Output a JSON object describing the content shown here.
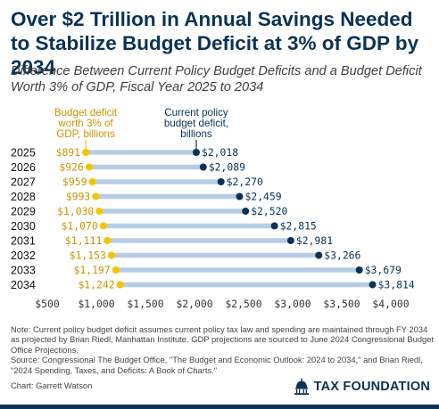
{
  "header": {
    "title": "Over $2 Trillion in Annual Savings Needed to Stabilize Budget Deficit at 3% of GDP by 2034",
    "subtitle": "Difference Between Current Policy Budget Deficits and a Budget Deficit Worth 3% of GDP, Fiscal Year 2025 to 2034"
  },
  "chart_data": {
    "type": "dumbbell",
    "categories": [
      "2025",
      "2026",
      "2027",
      "2028",
      "2029",
      "2030",
      "2031",
      "2032",
      "2033",
      "2034"
    ],
    "series": [
      {
        "name": "Budget deficit worth 3% of GDP, billions",
        "color": "#f5c400",
        "text_color": "#c99400",
        "values": [
          891,
          926,
          959,
          993,
          1030,
          1070,
          1111,
          1153,
          1197,
          1242
        ],
        "labels": [
          "$891",
          "$926",
          "$959",
          "$993",
          "$1,030",
          "$1,070",
          "$1,111",
          "$1,153",
          "$1,197",
          "$1,242"
        ]
      },
      {
        "name": "Current policy budget deficit, billions",
        "color": "#0a3255",
        "text_color": "#0a3255",
        "values": [
          2018,
          2089,
          2270,
          2459,
          2520,
          2815,
          2981,
          3266,
          3679,
          3814
        ],
        "labels": [
          "$2,018",
          "$2,089",
          "$2,270",
          "$2,459",
          "$2,520",
          "$2,815",
          "$2,981",
          "$3,266",
          "$3,679",
          "$3,814"
        ]
      }
    ],
    "legend_lines": [
      [
        "Budget deficit",
        "worth 3% of",
        "GDP, billions"
      ],
      [
        "Current policy",
        "budget deficit,",
        "billions"
      ]
    ],
    "xlim": [
      500,
      4000
    ],
    "x_ticks": [
      500,
      1000,
      1500,
      2000,
      2500,
      3000,
      3500,
      4000
    ],
    "x_tick_labels": [
      "$500",
      "$1,000",
      "$1,500",
      "$2,000",
      "$2,500",
      "$3,000",
      "$3,500",
      "$4,000"
    ],
    "connector_color": "#b7cde4",
    "grid": false
  },
  "notes": {
    "note": "Note: Current policy budget deficit assumes current policy tax law and spending are maintained through FY 2034 as projected by Brian Riedl, Manhattan Institute. GDP projections are sourced to June 2024 Congressional Budget Office Projections.",
    "source": "Source: Congressional The Budget Office, \"The Budget and Economic Outlook: 2024 to 2034,\" and Brian Riedl, \"2024 Spending, Taxes, and Deficits: A Book of Charts.\"",
    "credit": "Chart: Garrett Watson"
  },
  "brand": {
    "name": "TAX FOUNDATION",
    "logo_icon": "capitol-dome-icon",
    "color": "#0a3255"
  }
}
